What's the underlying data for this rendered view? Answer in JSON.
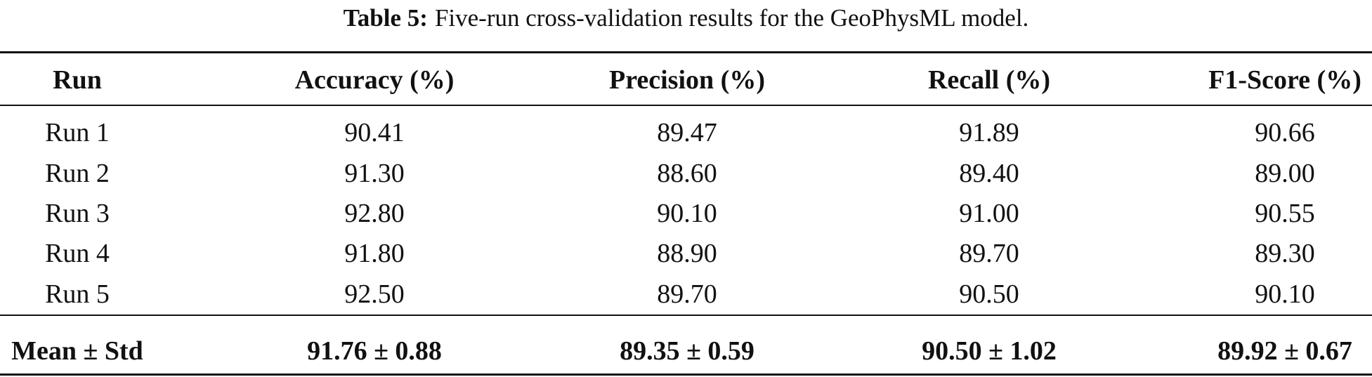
{
  "caption": {
    "label": "Table 5:",
    "text": "Five-run cross-validation results for the GeoPhysML model."
  },
  "table": {
    "header": [
      "Run",
      "Accuracy (%)",
      "Precision (%)",
      "Recall (%)",
      "F1-Score (%)"
    ],
    "rows": [
      [
        "Run 1",
        "90.41",
        "89.47",
        "91.89",
        "90.66"
      ],
      [
        "Run 2",
        "91.30",
        "88.60",
        "89.40",
        "89.00"
      ],
      [
        "Run 3",
        "92.80",
        "90.10",
        "91.00",
        "90.55"
      ],
      [
        "Run 4",
        "91.80",
        "88.90",
        "89.70",
        "89.30"
      ],
      [
        "Run 5",
        "92.50",
        "89.70",
        "90.50",
        "90.10"
      ]
    ],
    "footer": [
      "Mean ± Std",
      "91.76 ± 0.88",
      "89.35 ± 0.59",
      "90.50 ± 1.02",
      "89.92 ± 0.67"
    ]
  }
}
